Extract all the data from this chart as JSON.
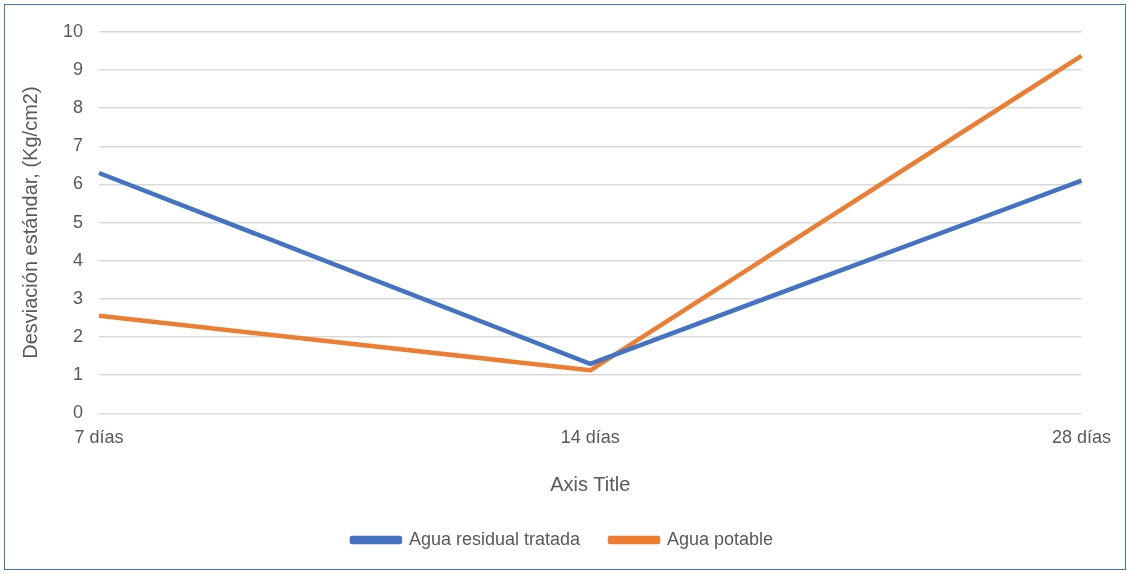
{
  "chart_data": {
    "type": "line",
    "xlabel": "Axis Title",
    "ylabel": "Desviación estándar, (Kg/cm2)",
    "categories": [
      "7 días",
      "14 días",
      "28 días"
    ],
    "series": [
      {
        "name": "Agua residual tratada",
        "color": "#4472c4",
        "values": [
          6.3,
          1.3,
          6.1
        ]
      },
      {
        "name": "Agua potable",
        "color": "#ed7d31",
        "values": [
          2.56,
          1.13,
          9.37
        ]
      }
    ],
    "ylim": [
      0,
      10
    ],
    "yticks": [
      0,
      1,
      2,
      3,
      4,
      5,
      6,
      7,
      8,
      9,
      10
    ],
    "grid": "y",
    "legend": "bottom",
    "marker": "none",
    "line_style": "solid"
  }
}
